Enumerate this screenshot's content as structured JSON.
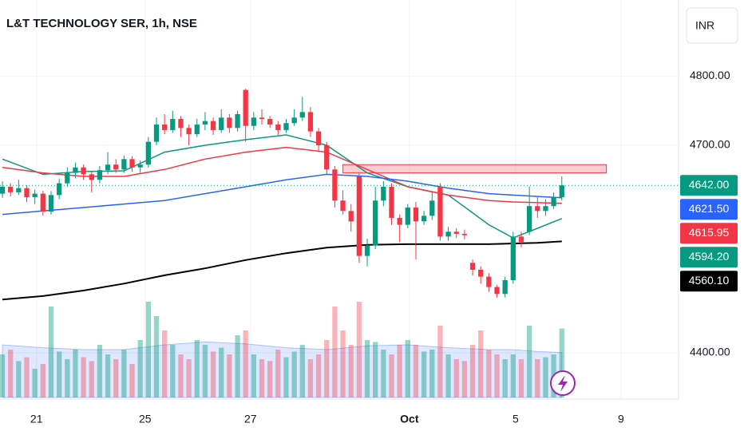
{
  "chart_data": {
    "type": "candlestick",
    "title": "L&T TECHNOLOGY SER, 1h, NSE",
    "currency": "INR",
    "up_color": "#089981",
    "down_color": "#f23645",
    "xlim": [
      -0.3,
      83.4
    ],
    "xticks": [
      {
        "value": 4.2,
        "label": "21"
      },
      {
        "value": 17.6,
        "label": "25"
      },
      {
        "value": 30.6,
        "label": "27"
      },
      {
        "value": 50.2,
        "label": "Oct"
      },
      {
        "value": 63.3,
        "label": "5"
      },
      {
        "value": 76.3,
        "label": "9"
      }
    ],
    "ylim": [
      4333,
      4910
    ],
    "yticks": [
      {
        "value": 4400,
        "label": "4400.00"
      },
      {
        "value": 4700,
        "label": "4700.00"
      },
      {
        "value": 4800,
        "label": "4800.00"
      }
    ],
    "ohlc": [
      [
        4630,
        4648,
        4624,
        4640
      ],
      [
        4640,
        4645,
        4626,
        4632
      ],
      [
        4632,
        4650,
        4628,
        4638
      ],
      [
        4638,
        4642,
        4618,
        4625
      ],
      [
        4625,
        4636,
        4615,
        4630
      ],
      [
        4630,
        4634,
        4598,
        4604
      ],
      [
        4604,
        4634,
        4600,
        4628
      ],
      [
        4628,
        4652,
        4622,
        4645
      ],
      [
        4645,
        4668,
        4640,
        4660
      ],
      [
        4660,
        4675,
        4652,
        4668
      ],
      [
        4668,
        4672,
        4650,
        4658
      ],
      [
        4658,
        4662,
        4632,
        4650
      ],
      [
        4650,
        4670,
        4645,
        4664
      ],
      [
        4664,
        4690,
        4658,
        4672
      ],
      [
        4672,
        4680,
        4660,
        4665
      ],
      [
        4665,
        4685,
        4660,
        4680
      ],
      [
        4680,
        4684,
        4662,
        4668
      ],
      [
        4668,
        4678,
        4660,
        4672
      ],
      [
        4672,
        4712,
        4668,
        4705
      ],
      [
        4705,
        4740,
        4700,
        4730
      ],
      [
        4730,
        4745,
        4716,
        4722
      ],
      [
        4722,
        4750,
        4718,
        4738
      ],
      [
        4738,
        4742,
        4712,
        4725
      ],
      [
        4725,
        4730,
        4700,
        4716
      ],
      [
        4716,
        4738,
        4712,
        4730
      ],
      [
        4730,
        4748,
        4722,
        4735
      ],
      [
        4735,
        4740,
        4715,
        4722
      ],
      [
        4722,
        4752,
        4718,
        4740
      ],
      [
        4740,
        4745,
        4718,
        4725
      ],
      [
        4725,
        4750,
        4720,
        4745
      ],
      [
        4780,
        4782,
        4705,
        4728
      ],
      [
        4728,
        4748,
        4722,
        4740
      ],
      [
        4740,
        4752,
        4730,
        4738
      ],
      [
        4738,
        4742,
        4725,
        4730
      ],
      [
        4730,
        4735,
        4715,
        4722
      ],
      [
        4722,
        4738,
        4718,
        4732
      ],
      [
        4732,
        4752,
        4728,
        4740
      ],
      [
        4740,
        4770,
        4735,
        4748
      ],
      [
        4748,
        4755,
        4712,
        4720
      ],
      [
        4720,
        4725,
        4690,
        4700
      ],
      [
        4700,
        4705,
        4658,
        4665
      ],
      [
        4665,
        4670,
        4610,
        4620
      ],
      [
        4620,
        4635,
        4600,
        4605
      ],
      [
        4605,
        4615,
        4575,
        4590
      ],
      [
        4655,
        4660,
        4530,
        4540
      ],
      [
        4540,
        4565,
        4525,
        4555
      ],
      [
        4555,
        4640,
        4550,
        4620
      ],
      [
        4620,
        4648,
        4612,
        4640
      ],
      [
        4640,
        4645,
        4585,
        4595
      ],
      [
        4595,
        4600,
        4560,
        4585
      ],
      [
        4585,
        4615,
        4580,
        4610
      ],
      [
        4610,
        4618,
        4535,
        4590
      ],
      [
        4590,
        4605,
        4585,
        4598
      ],
      [
        4598,
        4632,
        4592,
        4620
      ],
      [
        4640,
        4645,
        4562,
        4568
      ],
      [
        4568,
        4582,
        4562,
        4575
      ],
      [
        4575,
        4580,
        4566,
        4572
      ],
      [
        4572,
        4578,
        4564,
        4570
      ],
      [
        4530,
        4535,
        4512,
        4520
      ],
      [
        4520,
        4525,
        4500,
        4510
      ],
      [
        4510,
        4515,
        4488,
        4495
      ],
      [
        4495,
        4498,
        4480,
        4485
      ],
      [
        4485,
        4510,
        4480,
        4505
      ],
      [
        4505,
        4575,
        4500,
        4568
      ],
      [
        4568,
        4575,
        4552,
        4560
      ],
      [
        4575,
        4640,
        4570,
        4612
      ],
      [
        4612,
        4625,
        4595,
        4605
      ],
      [
        4605,
        4622,
        4598,
        4612
      ],
      [
        4612,
        4632,
        4608,
        4625
      ],
      [
        4625,
        4655,
        4620,
        4642
      ]
    ],
    "volume": [
      45,
      50,
      38,
      42,
      30,
      35,
      95,
      48,
      40,
      50,
      42,
      38,
      55,
      45,
      40,
      50,
      35,
      60,
      100,
      85,
      70,
      55,
      45,
      40,
      60,
      55,
      48,
      52,
      45,
      65,
      70,
      45,
      40,
      38,
      50,
      42,
      48,
      55,
      40,
      45,
      60,
      95,
      70,
      55,
      100,
      60,
      58,
      50,
      45,
      55,
      60,
      55,
      48,
      50,
      75,
      45,
      40,
      38,
      55,
      70,
      50,
      45,
      40,
      45,
      40,
      75,
      40,
      42,
      45,
      72
    ],
    "vlim": [
      0,
      100
    ],
    "volume_up_color": "rgba(8,153,129,0.42)",
    "volume_down_color": "rgba(242,54,69,0.38)",
    "ma_x": [
      0,
      5,
      10,
      15,
      20,
      25,
      30,
      35,
      40,
      45,
      50,
      55,
      60,
      63,
      66,
      69
    ],
    "volume_ma": {
      "color": "rgba(41,98,255,0.15)",
      "values": [
        55,
        52,
        50,
        50,
        55,
        58,
        56,
        52,
        50,
        54,
        55,
        52,
        50,
        50,
        48,
        47
      ]
    },
    "series": [
      {
        "color": "#089981",
        "values": [
          4680,
          4658,
          4662,
          4663,
          4690,
          4700,
          4708,
          4715,
          4700,
          4660,
          4640,
          4628,
          4585,
          4566,
          4580,
          4594
        ]
      },
      {
        "color": "#f23645",
        "values": [
          4668,
          4660,
          4655,
          4655,
          4665,
          4680,
          4690,
          4697,
          4690,
          4665,
          4640,
          4628,
          4620,
          4618,
          4617,
          4616
        ]
      },
      {
        "color": "#2962ff",
        "values": [
          4600,
          4605,
          4610,
          4615,
          4620,
          4630,
          4640,
          4650,
          4658,
          4655,
          4648,
          4638,
          4630,
          4628,
          4626,
          4624
        ]
      },
      {
        "color": "#000000",
        "values": [
          4477,
          4482,
          4490,
          4500,
          4512,
          4522,
          4534,
          4544,
          4552,
          4556,
          4557,
          4557,
          4557,
          4558,
          4559,
          4561
        ]
      }
    ],
    "zone": {
      "x": [
        42.0,
        74.5
      ],
      "y": [
        4660,
        4672
      ],
      "color": "rgba(242,54,69,0.25)",
      "border": "#f23645"
    },
    "last_price": {
      "value": 4642,
      "color": "#089981"
    },
    "price_labels": [
      {
        "value": 4642,
        "label": "4642.00",
        "color": "#089981"
      },
      {
        "value": 4621.5,
        "label": "4621.50",
        "color": "#2962ff"
      },
      {
        "value": 4615.95,
        "label": "4615.95",
        "color": "#f23645"
      },
      {
        "value": 4594.2,
        "label": "4594.20",
        "color": "#089981"
      },
      {
        "value": 4560.1,
        "label": "4560.10",
        "color": "#000000"
      }
    ]
  }
}
